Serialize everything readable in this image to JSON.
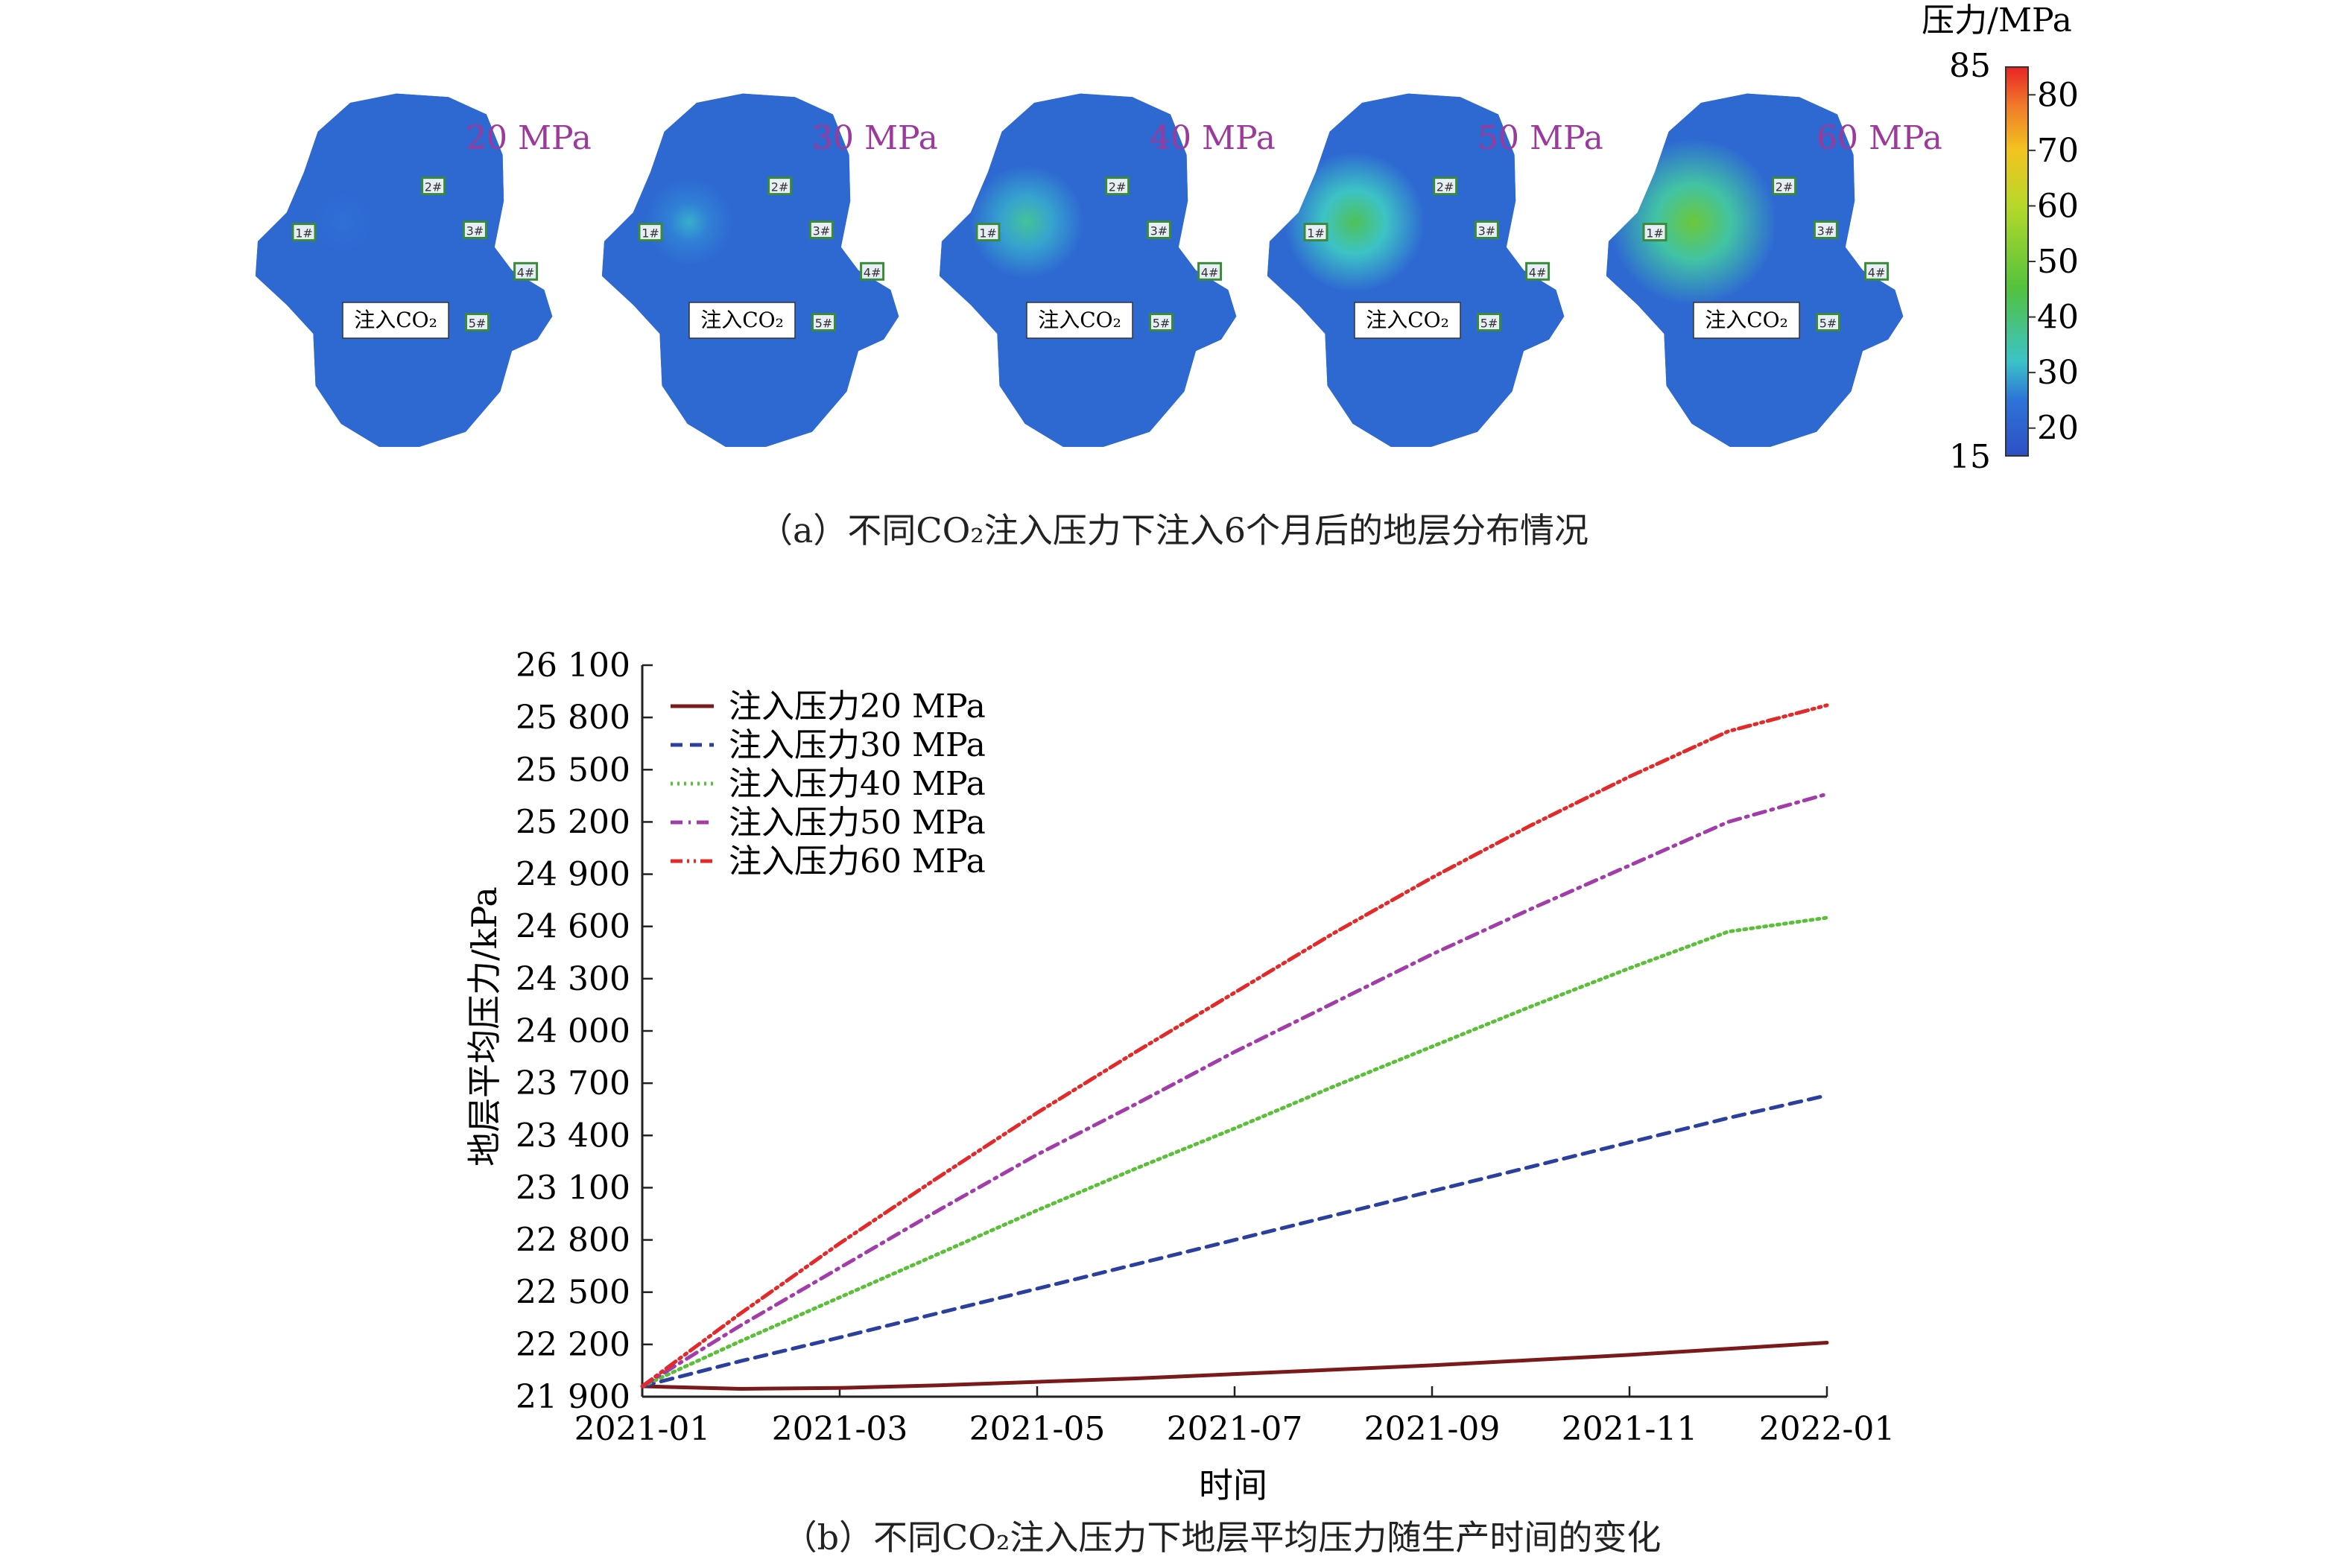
{
  "panel_a": {
    "caption": "（a）不同CO₂注入压力下注入6个月后的地层分布情况",
    "injection_label": "注入CO₂",
    "wells": [
      "1#",
      "2#",
      "3#",
      "4#",
      "5#"
    ],
    "maps": [
      {
        "label": "20 MPa",
        "pressure": 20
      },
      {
        "label": "30 MPa",
        "pressure": 30
      },
      {
        "label": "40 MPa",
        "pressure": 40
      },
      {
        "label": "50 MPa",
        "pressure": 50
      },
      {
        "label": "60 MPa",
        "pressure": 60
      }
    ],
    "label_color": "#9b3a9b",
    "colorbar": {
      "title": "压力/MPa",
      "min": 15,
      "max": 85,
      "min_label": "15",
      "max_label": "85",
      "ticks": [
        20,
        30,
        40,
        50,
        60,
        70,
        80
      ],
      "tick_labels": [
        "20",
        "30",
        "40",
        "50",
        "60",
        "70",
        "80"
      ],
      "stops": [
        {
          "v": 15,
          "color": "#2d50c4"
        },
        {
          "v": 25,
          "color": "#2e73d8"
        },
        {
          "v": 32,
          "color": "#3cc3c8"
        },
        {
          "v": 45,
          "color": "#52c23e"
        },
        {
          "v": 60,
          "color": "#b6d82a"
        },
        {
          "v": 70,
          "color": "#f2c420"
        },
        {
          "v": 78,
          "color": "#f07a2a"
        },
        {
          "v": 85,
          "color": "#e82424"
        }
      ]
    }
  },
  "chart_data": {
    "type": "line",
    "caption": "（b）不同CO₂注入压力下地层平均压力随生产时间的变化",
    "xlabel": "时间",
    "ylabel": "地层平均压力/kPa",
    "x_ticks": [
      "2021-01",
      "2021-03",
      "2021-05",
      "2021-07",
      "2021-09",
      "2021-11",
      "2022-01"
    ],
    "x": [
      "2021-01",
      "2021-02",
      "2021-03",
      "2021-04",
      "2021-05",
      "2021-06",
      "2021-07",
      "2021-08",
      "2021-09",
      "2021-10",
      "2021-11",
      "2021-12",
      "2022-01"
    ],
    "y_ticks": [
      "21 900",
      "22 200",
      "22 500",
      "22 800",
      "23 100",
      "23 400",
      "23 700",
      "24 000",
      "24 300",
      "24 600",
      "24 900",
      "25 200",
      "25 500",
      "25 800",
      "26 100"
    ],
    "ylim": [
      21900,
      26100
    ],
    "legend_position": "top-left",
    "series": [
      {
        "name": "注入压力20 MPa",
        "color": "#7a1a1a",
        "dash": "solid",
        "values": [
          21960,
          21945,
          21950,
          21965,
          21985,
          22005,
          22030,
          22055,
          22080,
          22110,
          22140,
          22175,
          22210
        ]
      },
      {
        "name": "注入压力30 MPa",
        "color": "#2b3f9e",
        "dash": "dashed",
        "values": [
          21960,
          22105,
          22240,
          22380,
          22520,
          22660,
          22800,
          22940,
          23080,
          23220,
          23360,
          23500,
          23630
        ]
      },
      {
        "name": "注入压力40 MPa",
        "color": "#5bbf3a",
        "dash": "dotted",
        "values": [
          21960,
          22220,
          22470,
          22720,
          22970,
          23210,
          23440,
          23680,
          23910,
          24140,
          24360,
          24570,
          24650
        ]
      },
      {
        "name": "注入压力50 MPa",
        "color": "#a23ca8",
        "dash": "dashdot",
        "values": [
          21960,
          22310,
          22640,
          22970,
          23290,
          23580,
          23880,
          24160,
          24440,
          24700,
          24950,
          25200,
          25360
        ]
      },
      {
        "name": "注入压力60 MPa",
        "color": "#e22a2a",
        "dash": "dashdotdot",
        "values": [
          21960,
          22380,
          22780,
          23160,
          23530,
          23880,
          24220,
          24560,
          24880,
          25180,
          25460,
          25720,
          25870
        ]
      }
    ]
  }
}
